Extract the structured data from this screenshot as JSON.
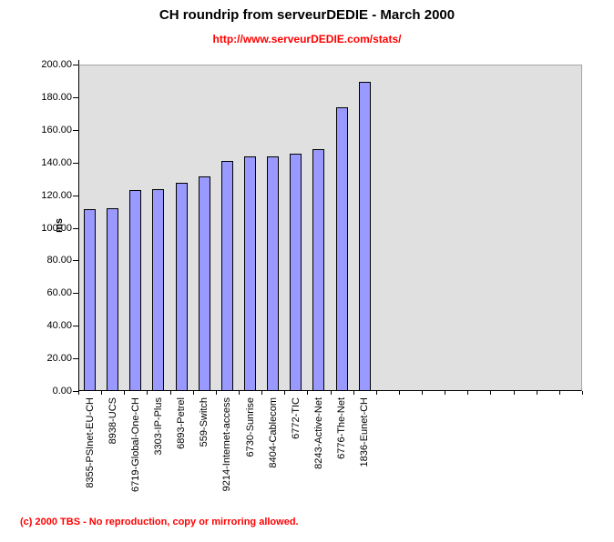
{
  "chart_data": {
    "type": "bar",
    "title": "CH roundrip from serveurDEDIE - March 2000",
    "subtitle": "http://www.serveurDEDIE.com/stats/",
    "footer": "(c) 2000 TBS - No reproduction, copy or mirroring allowed.",
    "xlabel": "",
    "ylabel": "ms",
    "ylim": [
      0,
      200
    ],
    "ytick_step": 20,
    "ytick_decimals": 2,
    "grid": false,
    "legend": false,
    "categories": [
      "8355-PSInet-EU-CH",
      "8938-UCS",
      "6719-Global-One-CH",
      "3303-IP-Plus",
      "6893-Petrel",
      "559-Switch",
      "9214-Internet-access",
      "6730-Sunrise",
      "8404-Cablecom",
      "6772-TIC",
      "8243-Active-Net",
      "6776-The-Net",
      "1836-Eunet-CH"
    ],
    "values": [
      111.5,
      112,
      123,
      123.5,
      127.5,
      131.5,
      141,
      143.5,
      143.5,
      145.5,
      148,
      174,
      189.5
    ],
    "empty_trailing_slots": 9,
    "colors": {
      "bar_fill": "#9999FF",
      "bar_border": "#000000",
      "plot_background": "#E0E0E0",
      "axis": "#000000",
      "plot_border": "#A6A6A6",
      "accent_red": "#FF0000",
      "page_background": "#FFFFFF"
    }
  }
}
